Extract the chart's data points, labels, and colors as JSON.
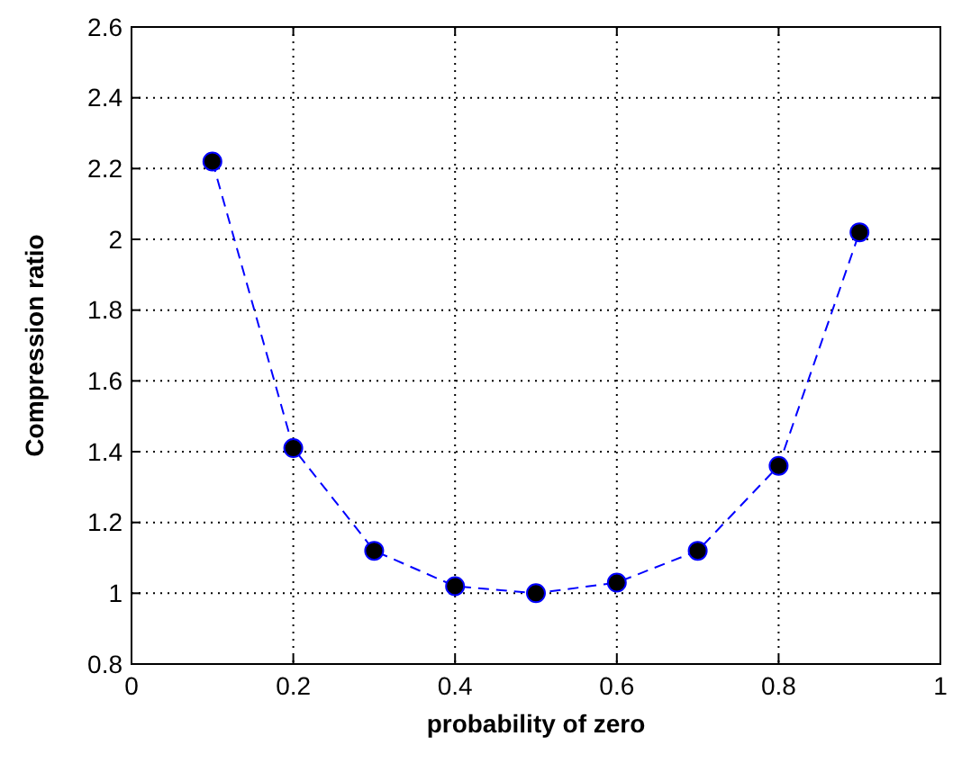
{
  "chart_data": {
    "type": "line",
    "xlabel": "probability of zero",
    "ylabel": "Compression ratio",
    "x": [
      0.1,
      0.2,
      0.3,
      0.4,
      0.5,
      0.6,
      0.7,
      0.8,
      0.9
    ],
    "series": [
      {
        "color": "#0000ff",
        "values": [
          2.22,
          1.41,
          1.12,
          1.02,
          1.0,
          1.03,
          1.12,
          1.36,
          2.02
        ]
      }
    ],
    "xlim": [
      0,
      1
    ],
    "xticks": [
      0,
      0.2,
      0.4,
      0.6,
      0.8,
      1
    ],
    "ylim": [
      0.8,
      2.6
    ],
    "yticks": [
      0.8,
      1,
      1.2,
      1.4,
      1.6,
      1.8,
      2,
      2.2,
      2.4,
      2.6
    ],
    "grid": true,
    "marker": "circle",
    "line_style": "dashed"
  }
}
